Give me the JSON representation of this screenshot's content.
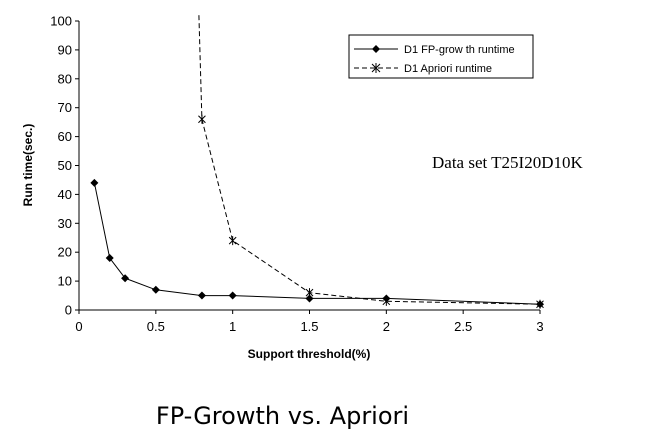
{
  "chart_data": {
    "type": "line",
    "title": "",
    "annotation": "Data set T25I20D10K",
    "xlabel": "Support threshold(%)",
    "ylabel": "Run time(sec.)",
    "xlim": [
      0,
      3
    ],
    "ylim": [
      0,
      100
    ],
    "xticks": [
      "0",
      "0.5",
      "1",
      "1.5",
      "2",
      "2.5",
      "3"
    ],
    "yticks": [
      "0",
      "10",
      "20",
      "30",
      "40",
      "50",
      "60",
      "70",
      "80",
      "90",
      "100"
    ],
    "grid": false,
    "legend_position": "top-right",
    "series": [
      {
        "name": "D1 FP-grow th runtime",
        "marker": "diamond",
        "line_style": "solid",
        "color": "#000000",
        "x": [
          0.1,
          0.2,
          0.3,
          0.5,
          0.8,
          1,
          1.5,
          2,
          3
        ],
        "y": [
          44,
          18,
          11,
          7,
          5,
          5,
          4,
          4,
          2
        ]
      },
      {
        "name": "D1 Apriori runtime",
        "marker": "star",
        "line_style": "dashed",
        "color": "#000000",
        "x": [
          0.78,
          0.8,
          1,
          1.5,
          2,
          3
        ],
        "y": [
          102,
          66,
          24,
          6,
          3,
          2
        ]
      }
    ]
  },
  "caption": "FP-Growth vs. Apriori"
}
